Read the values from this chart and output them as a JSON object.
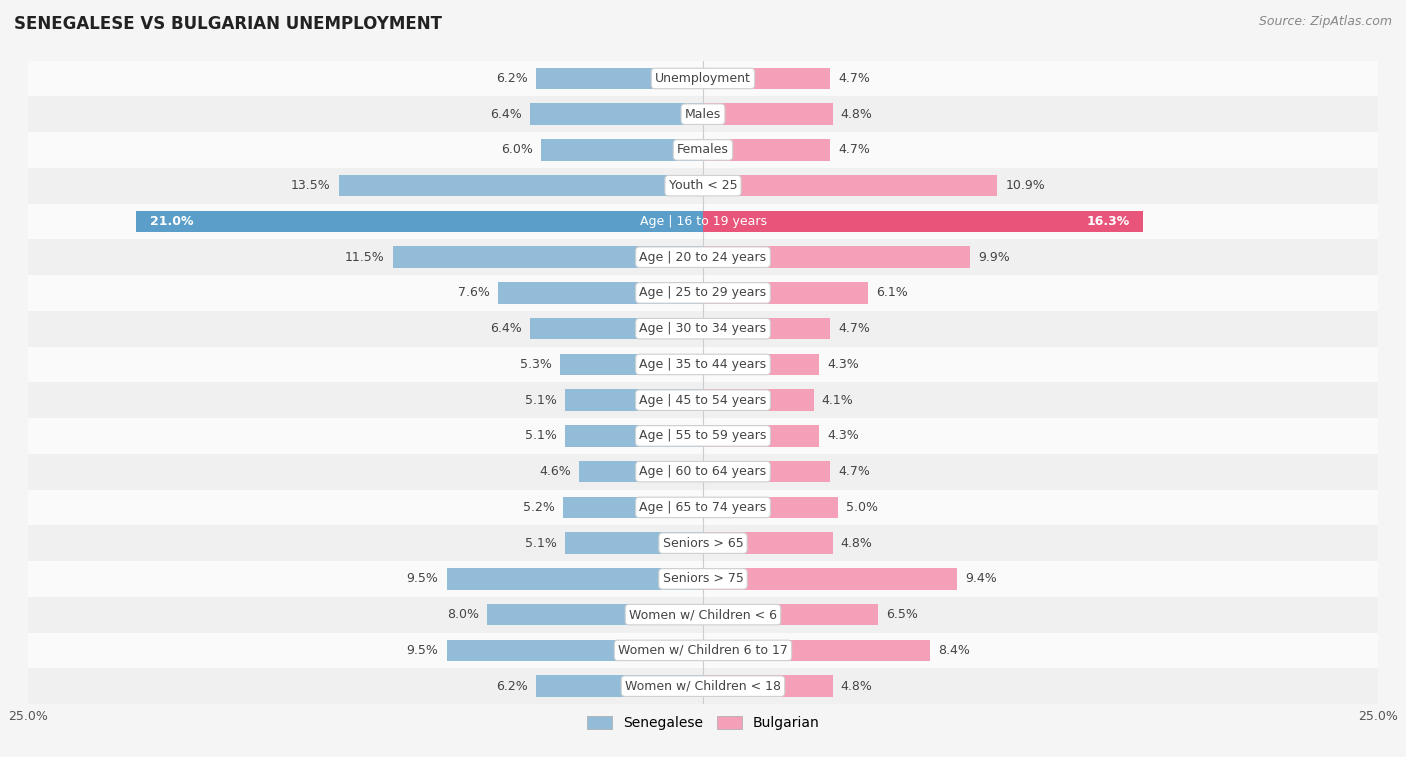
{
  "title": "SENEGALESE VS BULGARIAN UNEMPLOYMENT",
  "source": "Source: ZipAtlas.com",
  "categories": [
    "Unemployment",
    "Males",
    "Females",
    "Youth < 25",
    "Age | 16 to 19 years",
    "Age | 20 to 24 years",
    "Age | 25 to 29 years",
    "Age | 30 to 34 years",
    "Age | 35 to 44 years",
    "Age | 45 to 54 years",
    "Age | 55 to 59 years",
    "Age | 60 to 64 years",
    "Age | 65 to 74 years",
    "Seniors > 65",
    "Seniors > 75",
    "Women w/ Children < 6",
    "Women w/ Children 6 to 17",
    "Women w/ Children < 18"
  ],
  "senegalese": [
    6.2,
    6.4,
    6.0,
    13.5,
    21.0,
    11.5,
    7.6,
    6.4,
    5.3,
    5.1,
    5.1,
    4.6,
    5.2,
    5.1,
    9.5,
    8.0,
    9.5,
    6.2
  ],
  "bulgarian": [
    4.7,
    4.8,
    4.7,
    10.9,
    16.3,
    9.9,
    6.1,
    4.7,
    4.3,
    4.1,
    4.3,
    4.7,
    5.0,
    4.8,
    9.4,
    6.5,
    8.4,
    4.8
  ],
  "senegalese_color": "#92bcd8",
  "bulgarian_color": "#f4a0b8",
  "senegalese_highlight_color": "#5a9ec9",
  "bulgarian_highlight_color": "#e8547a",
  "youth_senegalese_color": "#92bcd8",
  "youth_bulgarian_color": "#f4a0b8",
  "row_color_odd": "#f0f0f0",
  "row_color_even": "#fafafa",
  "background_color": "#f5f5f5",
  "xlim": 25.0,
  "bar_height": 0.6,
  "label_fontsize": 9,
  "title_fontsize": 12,
  "source_fontsize": 9,
  "legend_senegalese": "Senegalese",
  "legend_bulgarian": "Bulgarian",
  "value_color": "#444444",
  "highlight_row_index": 4,
  "youth_row_index": 3
}
